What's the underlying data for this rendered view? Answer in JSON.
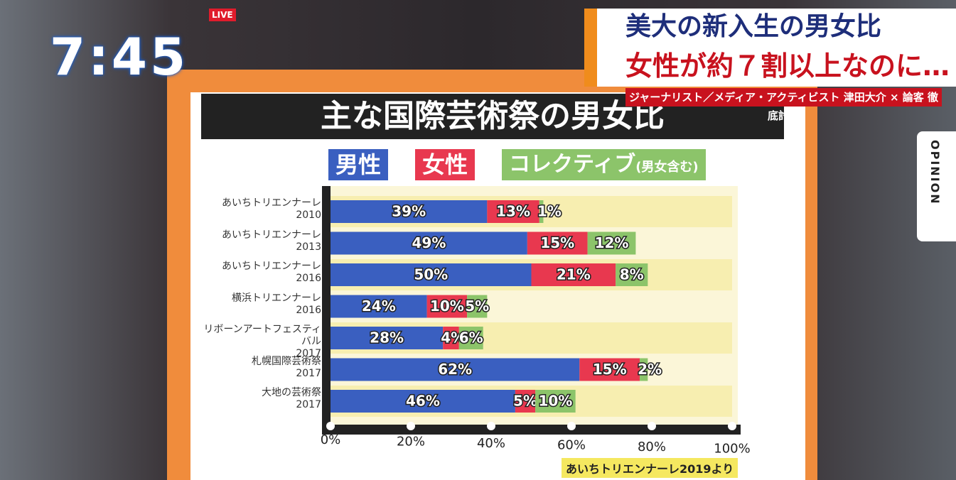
{
  "chart_data": {
    "type": "stacked-barh",
    "title": "主な国際芸術祭の男女比",
    "legend_note": "(男女含む)",
    "source": "あいちトリエンナーレ2019より",
    "categories": [
      "あいちトリエンナーレ\n2010",
      "あいちトリエンナーレ\n2013",
      "あいちトリエンナーレ\n2016",
      "横浜トリエンナーレ\n2016",
      "リボーンアートフェスティバル\n2017",
      "札幌国際芸術祭\n2017",
      "大地の芸術祭\n2017"
    ],
    "series": [
      {
        "name": "男性",
        "color": "#3a5fc0",
        "values": [
          39,
          49,
          50,
          24,
          28,
          62,
          46
        ],
        "value_labels": [
          "39%",
          "49%",
          "50%",
          "24%",
          "28%",
          "62%",
          "46%"
        ]
      },
      {
        "name": "女性",
        "color": "#e8384f",
        "values": [
          13,
          15,
          21,
          10,
          4,
          15,
          5
        ],
        "value_labels": [
          "13%",
          "15%",
          "21%",
          "10%",
          "4%",
          "15%",
          "5%"
        ]
      },
      {
        "name": "コレクティブ",
        "color": "#8cc46a",
        "values": [
          1,
          12,
          8,
          5,
          6,
          2,
          10
        ],
        "value_labels": [
          "1%",
          "12%",
          "8%",
          "5%",
          "6%",
          "2%",
          "10%"
        ]
      }
    ],
    "xlim": [
      0,
      100
    ],
    "xticks": [
      {
        "value": 0,
        "label": "0%"
      },
      {
        "value": 20,
        "label": "20%"
      },
      {
        "value": 40,
        "label": "40%"
      },
      {
        "value": 60,
        "label": "60%"
      },
      {
        "value": 80,
        "label": "80%"
      },
      {
        "value": 100,
        "label": "100%"
      }
    ]
  },
  "overlay": {
    "time": "7:45",
    "live": "LIVE",
    "headline": [
      "美大の新入生の男女比",
      "女性が約７割以上なのに…"
    ],
    "subheadline": "ジャーナリスト／メディア・アクティビスト 津田大介 × 論客 徹底討論",
    "tab": "OPINION"
  }
}
